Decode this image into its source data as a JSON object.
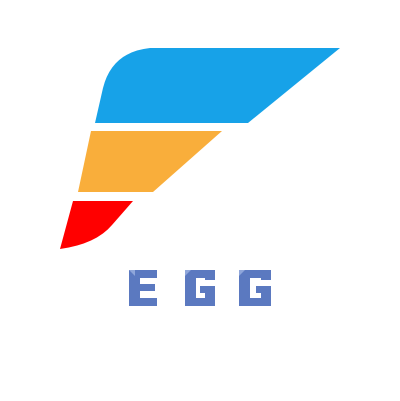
{
  "logo": {
    "wordmark": "EGG",
    "colors": {
      "top_stripe": "#17A2E8",
      "middle_stripe": "#F9AE3B",
      "bottom_stripe": "#FF0000",
      "wordmark": "#5B79C0"
    }
  }
}
